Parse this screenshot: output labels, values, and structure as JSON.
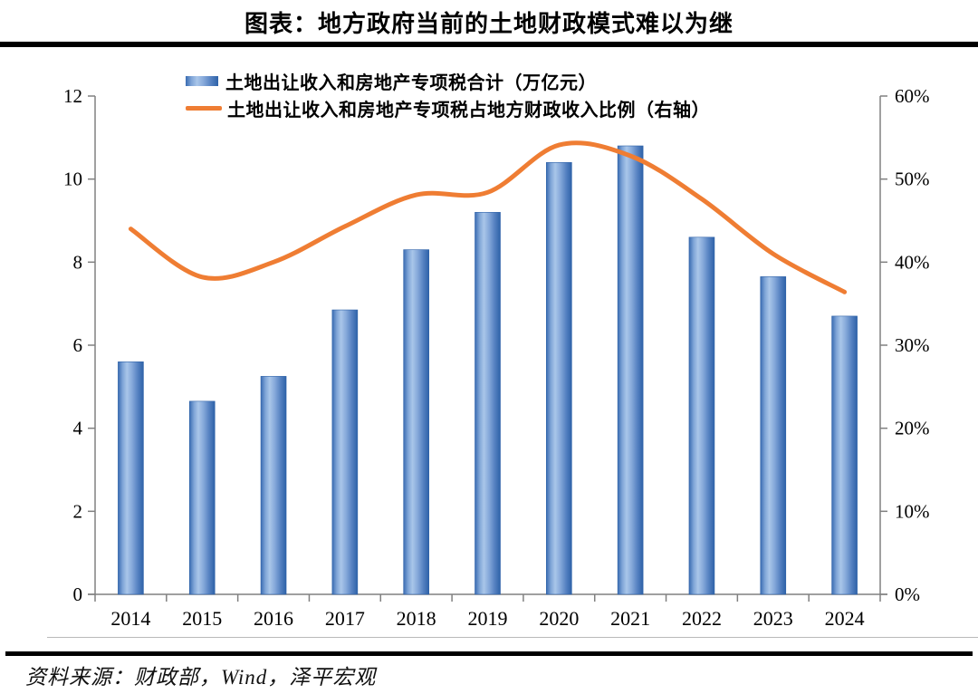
{
  "page": {
    "title": "图表：地方政府当前的土地财政模式难以为继",
    "source": "资料来源：财政部，Wind，泽平宏观"
  },
  "colors": {
    "bar_edge": "#2E62A8",
    "bar_mid": "#A9C6E9",
    "line": "#EF7D33",
    "axis": "#808080",
    "rule": "#000000"
  },
  "chart_data": {
    "type": "bar",
    "title": "图表：地方政府当前的土地财政模式难以为继",
    "categories": [
      "2014",
      "2015",
      "2016",
      "2017",
      "2018",
      "2019",
      "2020",
      "2021",
      "2022",
      "2023",
      "2024"
    ],
    "series": [
      {
        "name": "土地出让收入和房地产专项税合计（万亿元）",
        "type": "bar",
        "axis": "left",
        "values": [
          5.6,
          4.65,
          5.25,
          6.85,
          8.3,
          9.2,
          10.4,
          10.8,
          8.6,
          7.65,
          6.7
        ]
      },
      {
        "name": "土地出让收入和房地产专项税占地方财政收入比例（右轴）",
        "type": "line",
        "axis": "right",
        "values": [
          44.0,
          38.2,
          40.0,
          44.3,
          48.1,
          48.4,
          54.1,
          52.8,
          47.6,
          41.0,
          36.4
        ]
      }
    ],
    "left_axis": {
      "min": 0,
      "max": 12,
      "ticks": [
        "0",
        "2",
        "4",
        "6",
        "8",
        "10",
        "12"
      ]
    },
    "right_axis": {
      "min": 0,
      "max": 60,
      "ticks": [
        "0%",
        "10%",
        "20%",
        "30%",
        "40%",
        "50%",
        "60%"
      ]
    },
    "legend_position": "top",
    "grid": false,
    "xlabel": "",
    "ylabel": ""
  }
}
